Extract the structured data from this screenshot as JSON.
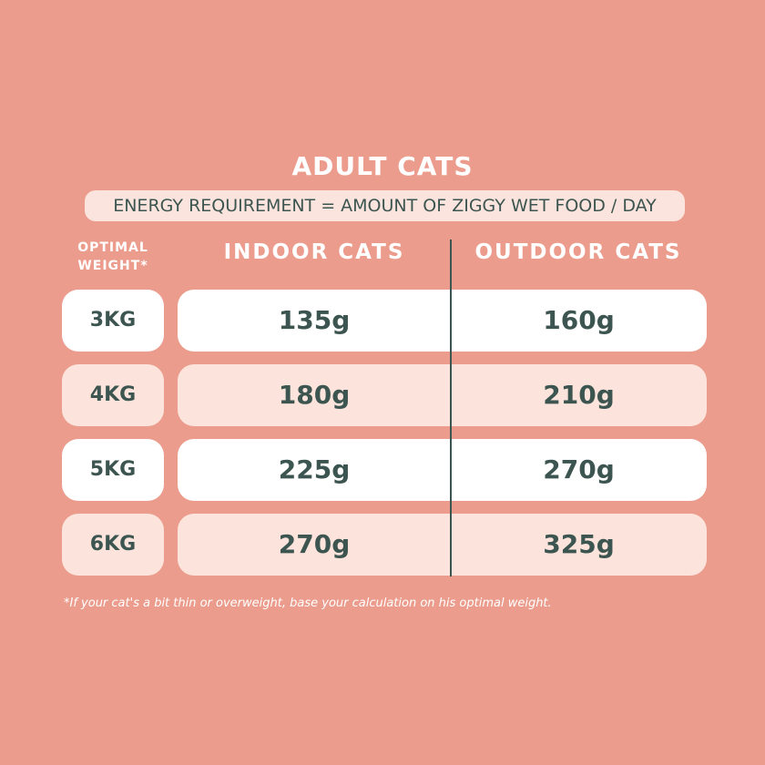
{
  "header": {
    "title": "ADULT CATS",
    "subtitle": "ENERGY REQUIREMENT = AMOUNT OF ZIGGY WET FOOD / DAY"
  },
  "table": {
    "columns": [
      "OPTIMAL WEIGHT*",
      "INDOOR CATS",
      "OUTDOOR CATS"
    ],
    "rows": [
      [
        "3KG",
        "135g",
        "160g"
      ],
      [
        "4KG",
        "180g",
        "210g"
      ],
      [
        "5KG",
        "225g",
        "270g"
      ],
      [
        "6KG",
        "270g",
        "325g"
      ]
    ]
  },
  "footnote": "*If your cat's a bit thin or overweight, base your calculation on his optimal weight."
}
